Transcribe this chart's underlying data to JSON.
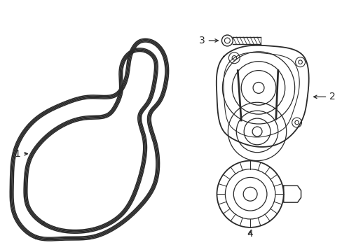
{
  "bg_color": "#ffffff",
  "line_color": "#2a2a2a",
  "line_width": 1.3,
  "label_fontsize": 10,
  "labels": [
    "1",
    "2",
    "3",
    "4"
  ]
}
